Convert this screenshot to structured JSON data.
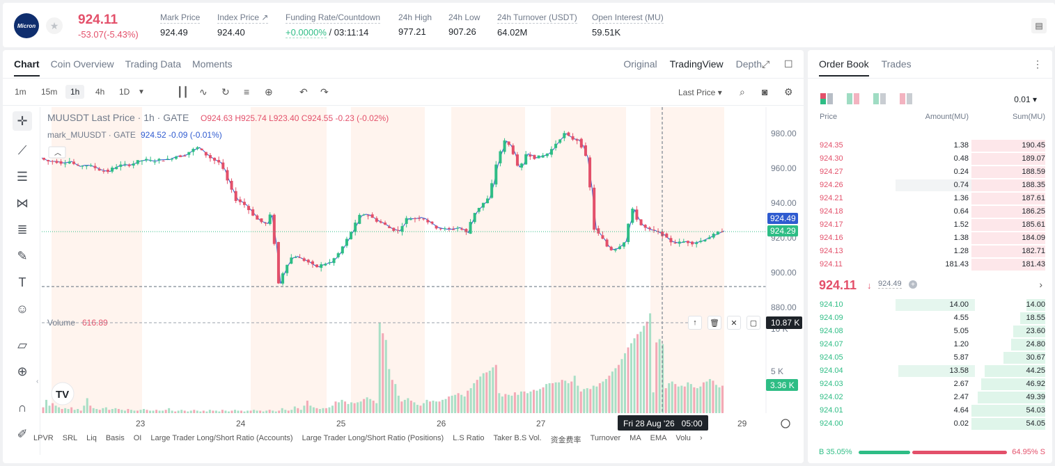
{
  "header": {
    "logo_text": "Micron",
    "last_price": "924.11",
    "change": "-53.07(-5.43%)",
    "stats": [
      {
        "label": "Mark Price",
        "value": "924.49"
      },
      {
        "label": "Index Price ↗",
        "value": "924.40"
      },
      {
        "label": "Funding Rate/Countdown",
        "value_green": "+0.0000%",
        "value": "/ 03:11:14"
      },
      {
        "label": "24h High",
        "value": "977.21"
      },
      {
        "label": "24h Low",
        "value": "907.26"
      },
      {
        "label": "24h Turnover (USDT)",
        "value": "64.02M"
      },
      {
        "label": "Open Interest (MU)",
        "value": "59.51K"
      }
    ]
  },
  "chart_panel": {
    "tabs": [
      "Chart",
      "Coin Overview",
      "Trading Data",
      "Moments"
    ],
    "views": [
      "Original",
      "TradingView",
      "Depth"
    ],
    "timeframes": [
      "1m",
      "15m",
      "1h",
      "4h",
      "1D"
    ],
    "price_type": "Last Price",
    "legend1_title": "MUUSDT Last Price · 1h · GATE",
    "legend1_ohlc": "O924.63  H925.74  L923.40  C924.55  -0.23 (-0.02%)",
    "legend2_title": "mark_MUUSDT · GATE",
    "legend2_vals": "924.52  -0.09 (-0.01%)",
    "volume_label": "Volume",
    "volume_value": "616.89",
    "mark_price_tag": "924.49",
    "last_price_tag": "924.29",
    "volume_tag": "10.87 K",
    "volume_tag2": "3.36 K",
    "crosshair_time": "Fri 28 Aug '26   05:00",
    "bottom_indicators": [
      "LPVR",
      "SRL",
      "Liq",
      "Basis",
      "OI",
      "Large Trader Long/Short Ratio (Accounts)",
      "Large Trader Long/Short Ratio (Positions)",
      "L.S Ratio",
      "Taker B.S Vol.",
      "资金费率",
      "Turnover",
      "MA",
      "EMA",
      "Volu"
    ]
  },
  "chart_data": {
    "type": "candlestick",
    "x_ticks": [
      "23",
      "24",
      "25",
      "26",
      "27",
      "29"
    ],
    "y_ticks": [
      "980.00",
      "960.00",
      "940.00",
      "920.00",
      "900.00",
      "880.00"
    ],
    "volume_ticks": [
      "10 K",
      "5 K"
    ],
    "ylim": [
      880,
      990
    ],
    "last_price": 924.29,
    "mark_price": 924.49,
    "price_path": [
      [
        0,
        966
      ],
      [
        6,
        964
      ],
      [
        12,
        964
      ],
      [
        18,
        963
      ],
      [
        24,
        964
      ],
      [
        30,
        961
      ],
      [
        36,
        962
      ],
      [
        42,
        961
      ],
      [
        48,
        959
      ],
      [
        54,
        958
      ],
      [
        60,
        961
      ],
      [
        66,
        962
      ],
      [
        72,
        962
      ],
      [
        78,
        964
      ],
      [
        84,
        965
      ],
      [
        90,
        964
      ],
      [
        96,
        965
      ],
      [
        102,
        965
      ],
      [
        108,
        967
      ],
      [
        114,
        967
      ],
      [
        120,
        970
      ],
      [
        126,
        972
      ],
      [
        132,
        968
      ],
      [
        138,
        965
      ],
      [
        144,
        963
      ],
      [
        150,
        952
      ],
      [
        156,
        942
      ],
      [
        162,
        940
      ],
      [
        168,
        935
      ],
      [
        174,
        930
      ],
      [
        180,
        928
      ],
      [
        186,
        936
      ],
      [
        188,
        898
      ],
      [
        190,
        893
      ],
      [
        196,
        904
      ],
      [
        202,
        910
      ],
      [
        208,
        908
      ],
      [
        214,
        906
      ],
      [
        220,
        903
      ],
      [
        226,
        905
      ],
      [
        232,
        906
      ],
      [
        238,
        911
      ],
      [
        244,
        918
      ],
      [
        250,
        926
      ],
      [
        256,
        934
      ],
      [
        262,
        933
      ],
      [
        268,
        930
      ],
      [
        274,
        928
      ],
      [
        280,
        925
      ],
      [
        286,
        924
      ],
      [
        292,
        931
      ],
      [
        298,
        931
      ],
      [
        304,
        932
      ],
      [
        310,
        929
      ],
      [
        316,
        926
      ],
      [
        322,
        925
      ],
      [
        328,
        925
      ],
      [
        334,
        926
      ],
      [
        340,
        923
      ],
      [
        346,
        934
      ],
      [
        352,
        939
      ],
      [
        358,
        943
      ],
      [
        364,
        963
      ],
      [
        370,
        976
      ],
      [
        376,
        972
      ],
      [
        382,
        958
      ],
      [
        388,
        969
      ],
      [
        394,
        966
      ],
      [
        400,
        967
      ],
      [
        406,
        969
      ],
      [
        412,
        975
      ],
      [
        418,
        980
      ],
      [
        424,
        977
      ],
      [
        430,
        976
      ],
      [
        436,
        965
      ],
      [
        440,
        940
      ],
      [
        442,
        925
      ],
      [
        448,
        920
      ],
      [
        454,
        913
      ],
      [
        460,
        914
      ],
      [
        466,
        918
      ],
      [
        472,
        937
      ],
      [
        478,
        928
      ],
      [
        484,
        925
      ],
      [
        490,
        924
      ],
      [
        496,
        922
      ],
      [
        502,
        918
      ],
      [
        508,
        917
      ],
      [
        514,
        918
      ],
      [
        520,
        917
      ],
      [
        526,
        918
      ],
      [
        532,
        920
      ],
      [
        538,
        922
      ],
      [
        544,
        924
      ]
    ],
    "volume": [
      700,
      1600,
      900,
      1200,
      900,
      700,
      500,
      600,
      500,
      700,
      400,
      500,
      300,
      900,
      1800,
      900,
      600,
      500,
      400,
      600,
      700,
      400,
      500,
      600,
      500,
      400,
      300,
      500,
      400,
      300,
      300,
      400,
      500,
      400,
      300,
      300,
      400,
      300,
      300,
      400,
      600,
      300,
      200,
      300,
      400,
      300,
      200,
      300,
      400,
      300,
      200,
      300,
      200,
      400,
      300,
      300,
      200,
      400,
      300,
      200,
      300,
      400,
      300,
      300,
      200,
      300,
      300,
      400,
      300,
      300,
      200,
      300,
      400,
      300,
      200,
      300,
      600,
      400,
      300,
      400,
      800,
      600,
      400,
      900,
      1500,
      900,
      700,
      600,
      500,
      600,
      600,
      700,
      900,
      1400,
      1300,
      1600,
      1400,
      1100,
      1300,
      1200,
      1300,
      1400,
      1700,
      1900,
      1700,
      1500,
      1200,
      10870,
      9600,
      8800,
      5300,
      4000,
      3500,
      2100,
      1400,
      1600,
      1800,
      1500,
      1300,
      1000,
      900,
      1200,
      1600,
      1400,
      1500,
      1400,
      1400,
      1600,
      1700,
      2000,
      2100,
      2200,
      2400,
      2200,
      2000,
      2700,
      3000,
      3600,
      4000,
      4400,
      4800,
      4900,
      5100,
      5500,
      5800,
      2400,
      2000,
      2300,
      2200,
      2100,
      2500,
      2200,
      2600,
      2600,
      2400,
      2600,
      2800,
      2700,
      2900,
      3100,
      3500,
      3600,
      3600,
      3700,
      3700,
      4000,
      3900,
      3600,
      3800,
      4500,
      3300,
      2600,
      2900,
      3000,
      2900,
      3300,
      3200,
      3600,
      3800,
      4100,
      4500,
      5000,
      5400,
      5800,
      6500,
      7200,
      7900,
      8400,
      9000,
      9500,
      9800,
      10500,
      11000,
      12000,
      2500,
      8500,
      8900,
      8300,
      3000,
      3600,
      3800,
      3500,
      3200,
      3300,
      3200,
      3700,
      3500,
      3100,
      3000,
      3200,
      3700,
      3800,
      4100,
      3900,
      3400,
      3100,
      3300
    ],
    "grid": false
  },
  "order_book": {
    "tabs": [
      "Order Book",
      "Trades"
    ],
    "tick_size": "0.01",
    "headers": [
      "Price",
      "Amount(MU)",
      "Sum(MU)"
    ],
    "asks": [
      {
        "price": "924.35",
        "amount": "1.38",
        "sum": "190.45"
      },
      {
        "price": "924.30",
        "amount": "0.48",
        "sum": "189.07"
      },
      {
        "price": "924.27",
        "amount": "0.24",
        "sum": "188.59"
      },
      {
        "price": "924.26",
        "amount": "0.74",
        "sum": "188.35"
      },
      {
        "price": "924.21",
        "amount": "1.36",
        "sum": "187.61"
      },
      {
        "price": "924.18",
        "amount": "0.64",
        "sum": "186.25"
      },
      {
        "price": "924.17",
        "amount": "1.52",
        "sum": "185.61"
      },
      {
        "price": "924.16",
        "amount": "1.38",
        "sum": "184.09"
      },
      {
        "price": "924.13",
        "amount": "1.28",
        "sum": "182.71"
      },
      {
        "price": "924.11",
        "amount": "181.43",
        "sum": "181.43"
      }
    ],
    "mid_price": "924.11",
    "mid_mark": "924.49",
    "bids": [
      {
        "price": "924.10",
        "amount": "14.00",
        "sum": "14.00"
      },
      {
        "price": "924.09",
        "amount": "4.55",
        "sum": "18.55"
      },
      {
        "price": "924.08",
        "amount": "5.05",
        "sum": "23.60"
      },
      {
        "price": "924.07",
        "amount": "1.20",
        "sum": "24.80"
      },
      {
        "price": "924.05",
        "amount": "5.87",
        "sum": "30.67"
      },
      {
        "price": "924.04",
        "amount": "13.58",
        "sum": "44.25"
      },
      {
        "price": "924.03",
        "amount": "2.67",
        "sum": "46.92"
      },
      {
        "price": "924.02",
        "amount": "2.47",
        "sum": "49.39"
      },
      {
        "price": "924.01",
        "amount": "4.64",
        "sum": "54.03"
      },
      {
        "price": "924.00",
        "amount": "0.02",
        "sum": "54.05"
      }
    ],
    "buy_ratio": "B 35.05%",
    "sell_ratio": "64.95% S",
    "buy_fraction": 0.3505
  },
  "colors": {
    "up": "#2ebd85",
    "down": "#e3506a",
    "accent": "#1e2329"
  }
}
